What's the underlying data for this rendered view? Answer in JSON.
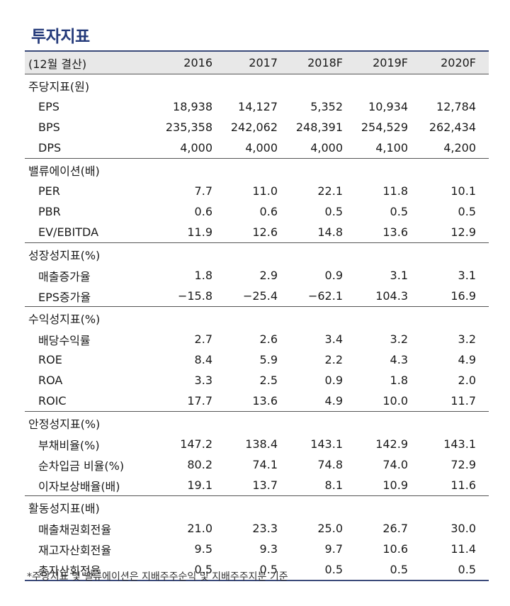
{
  "title": "투자지표",
  "header": {
    "label": "(12월 결산)",
    "years": [
      "2016",
      "2017",
      "2018F",
      "2019F",
      "2020F"
    ]
  },
  "sections": [
    {
      "title": "주당지표(원)",
      "rows": [
        {
          "label": "EPS",
          "values": [
            "18,938",
            "14,127",
            "5,352",
            "10,934",
            "12,784"
          ]
        },
        {
          "label": "BPS",
          "values": [
            "235,358",
            "242,062",
            "248,391",
            "254,529",
            "262,434"
          ]
        },
        {
          "label": "DPS",
          "values": [
            "4,000",
            "4,000",
            "4,000",
            "4,100",
            "4,200"
          ]
        }
      ]
    },
    {
      "title": "밸류에이션(배)",
      "rows": [
        {
          "label": "PER",
          "values": [
            "7.7",
            "11.0",
            "22.1",
            "11.8",
            "10.1"
          ]
        },
        {
          "label": "PBR",
          "values": [
            "0.6",
            "0.6",
            "0.5",
            "0.5",
            "0.5"
          ]
        },
        {
          "label": "EV/EBITDA",
          "values": [
            "11.9",
            "12.6",
            "14.8",
            "13.6",
            "12.9"
          ]
        }
      ]
    },
    {
      "title": "성장성지표(%)",
      "rows": [
        {
          "label": "매출증가율",
          "values": [
            "1.8",
            "2.9",
            "0.9",
            "3.1",
            "3.1"
          ]
        },
        {
          "label": "EPS증가율",
          "values": [
            "−15.8",
            "−25.4",
            "−62.1",
            "104.3",
            "16.9"
          ]
        }
      ]
    },
    {
      "title": "수익성지표(%)",
      "rows": [
        {
          "label": "배당수익률",
          "values": [
            "2.7",
            "2.6",
            "3.4",
            "3.2",
            "3.2"
          ]
        },
        {
          "label": "ROE",
          "values": [
            "8.4",
            "5.9",
            "2.2",
            "4.3",
            "4.9"
          ]
        },
        {
          "label": "ROA",
          "values": [
            "3.3",
            "2.5",
            "0.9",
            "1.8",
            "2.0"
          ]
        },
        {
          "label": "ROIC",
          "values": [
            "17.7",
            "13.6",
            "4.9",
            "10.0",
            "11.7"
          ]
        }
      ]
    },
    {
      "title": "안정성지표(%)",
      "rows": [
        {
          "label": "부채비율(%)",
          "values": [
            "147.2",
            "138.4",
            "143.1",
            "142.9",
            "143.1"
          ]
        },
        {
          "label": "순차입금 비율(%)",
          "values": [
            "80.2",
            "74.1",
            "74.8",
            "74.0",
            "72.9"
          ]
        },
        {
          "label": "이자보상배율(배)",
          "values": [
            "19.1",
            "13.7",
            "8.1",
            "10.9",
            "11.6"
          ]
        }
      ]
    },
    {
      "title": "활동성지표(배)",
      "rows": [
        {
          "label": "매출채권회전율",
          "values": [
            "21.0",
            "23.3",
            "25.0",
            "26.7",
            "30.0"
          ]
        },
        {
          "label": "재고자산회전율",
          "values": [
            "9.5",
            "9.3",
            "9.7",
            "10.6",
            "11.4"
          ]
        },
        {
          "label": "총자산회전율",
          "values": [
            "0.5",
            "0.5",
            "0.5",
            "0.5",
            "0.5"
          ]
        }
      ]
    }
  ],
  "footnote": "*주당지표 및 밸류에이션은 지배주주순익 및 지배주주지분 기준"
}
